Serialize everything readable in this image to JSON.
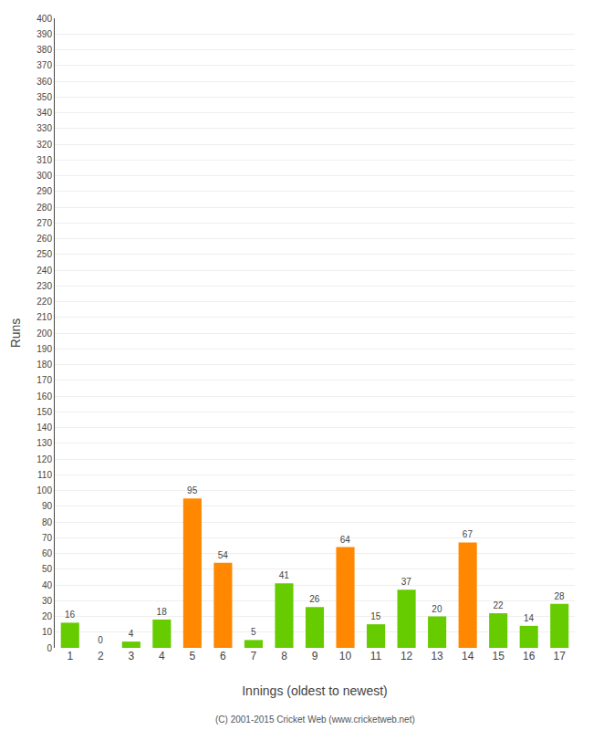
{
  "chart_data": {
    "type": "bar",
    "categories": [
      "1",
      "2",
      "3",
      "4",
      "5",
      "6",
      "7",
      "8",
      "9",
      "10",
      "11",
      "12",
      "13",
      "14",
      "15",
      "16",
      "17"
    ],
    "values": [
      16,
      0,
      4,
      18,
      95,
      54,
      5,
      41,
      26,
      64,
      15,
      37,
      20,
      67,
      22,
      14,
      28
    ],
    "colors": [
      "#66cc00",
      "#66cc00",
      "#66cc00",
      "#66cc00",
      "#ff8800",
      "#ff8800",
      "#66cc00",
      "#66cc00",
      "#66cc00",
      "#ff8800",
      "#66cc00",
      "#66cc00",
      "#66cc00",
      "#ff8800",
      "#66cc00",
      "#66cc00",
      "#66cc00"
    ],
    "xlabel": "Innings (oldest to newest)",
    "ylabel": "Runs",
    "ylim": [
      0,
      400
    ],
    "yticks": [
      0,
      10,
      20,
      30,
      40,
      50,
      60,
      70,
      80,
      90,
      100,
      110,
      120,
      130,
      140,
      150,
      160,
      170,
      180,
      190,
      200,
      210,
      220,
      230,
      240,
      250,
      260,
      270,
      280,
      290,
      300,
      310,
      320,
      330,
      340,
      350,
      360,
      370,
      380,
      390,
      400
    ],
    "grid": true,
    "data_labels": true,
    "annotations": [
      "(C) 2001-2015 Cricket Web (www.cricketweb.net)"
    ]
  }
}
